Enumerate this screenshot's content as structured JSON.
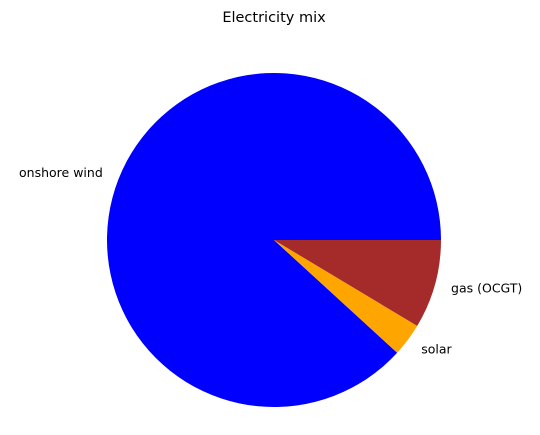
{
  "chart_data": {
    "type": "pie",
    "title": "Electricity mix",
    "slices": [
      {
        "label": "onshore wind",
        "value": 88.2,
        "color": "#0000ff"
      },
      {
        "label": "solar",
        "value": 3.2,
        "color": "#ffa500"
      },
      {
        "label": "gas (OCGT)",
        "value": 8.6,
        "color": "#a52a2a"
      }
    ],
    "start_angle_deg": 0,
    "direction": "counterclockwise",
    "legend": "none"
  }
}
